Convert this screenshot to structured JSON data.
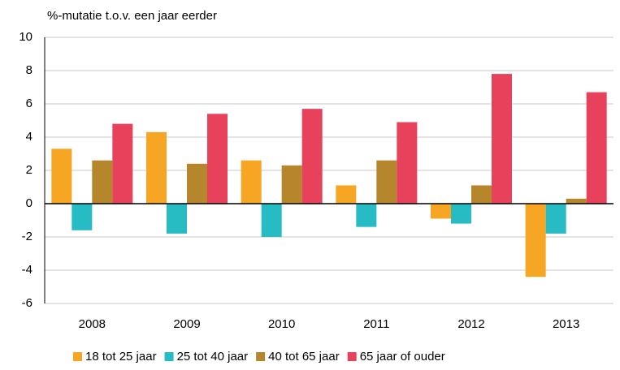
{
  "chart_data": {
    "type": "bar",
    "title": "%-mutatie t.o.v. een jaar eerder",
    "categories": [
      "2008",
      "2009",
      "2010",
      "2011",
      "2012",
      "2013"
    ],
    "series": [
      {
        "name": "18 tot 25 jaar",
        "color": "#f6a623",
        "values": [
          3.3,
          4.3,
          2.6,
          1.1,
          -0.9,
          -4.4
        ]
      },
      {
        "name": "25 tot 40 jaar",
        "color": "#27bcc4",
        "values": [
          -1.6,
          -1.8,
          -2.0,
          -1.4,
          -1.2,
          -1.8
        ]
      },
      {
        "name": "40 tot 65 jaar",
        "color": "#b5862b",
        "values": [
          2.6,
          2.4,
          2.3,
          2.6,
          1.1,
          0.3
        ]
      },
      {
        "name": "65 jaar of ouder",
        "color": "#e8415b",
        "values": [
          4.8,
          5.4,
          5.7,
          4.9,
          7.8,
          6.7
        ]
      }
    ],
    "ylim": [
      -6,
      10
    ],
    "yticks": [
      -6,
      -4,
      -2,
      0,
      2,
      4,
      6,
      8,
      10
    ],
    "grid": true,
    "legend": "bottom"
  }
}
